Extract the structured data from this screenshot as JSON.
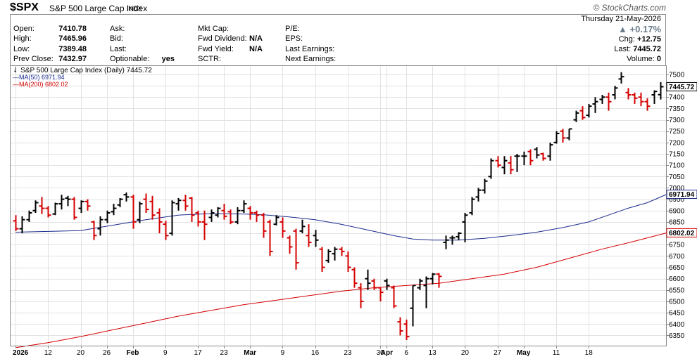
{
  "header": {
    "symbol": "$SPX",
    "name": "S&P 500 Large Cap Index",
    "exchange": "INDX",
    "brand": "© StockCharts.com"
  },
  "quote": {
    "col1": [
      {
        "label": "Open:",
        "value": "7410.78"
      },
      {
        "label": "High:",
        "value": "7465.96"
      },
      {
        "label": "Low:",
        "value": "7389.48"
      },
      {
        "label": "Prev Close:",
        "value": "7432.97"
      }
    ],
    "col2": [
      {
        "label": "Ask:",
        "value": ""
      },
      {
        "label": "Bid:",
        "value": ""
      },
      {
        "label": "Last:",
        "value": ""
      },
      {
        "label": "Optionable:",
        "value": "yes"
      }
    ],
    "col3": [
      {
        "label": "Mkt Cap:",
        "value": ""
      },
      {
        "label": "Fwd Dividend:",
        "value": "N/A"
      },
      {
        "label": "Fwd Yield:",
        "value": "N/A"
      },
      {
        "label": "SCTR:",
        "value": ""
      }
    ],
    "col4": [
      {
        "label": "P/E:",
        "value": ""
      },
      {
        "label": "EPS:",
        "value": ""
      },
      {
        "label": "Last Earnings:",
        "value": ""
      },
      {
        "label": "Next Earnings:",
        "value": ""
      }
    ],
    "date": "Thursday  21-May-2026",
    "pct_change": "+0.17%",
    "chg_label": "Chg:",
    "chg": "+12.75",
    "last_label": "Last:",
    "last": "7445.72",
    "volume_label": "Volume:",
    "volume": "0"
  },
  "colors": {
    "up": "#000000",
    "down": "#d40000",
    "ma50": "#1a2a8c",
    "ma200": "#d40000",
    "grid": "#e2e2e2",
    "pct_up": "#6d7d8c"
  },
  "chart_data": {
    "type": "ohlc",
    "title": "S&P 500 Large Cap Index (Daily) 7445.72",
    "legend": [
      {
        "name": "MA(50) 6971.94",
        "color": "#1a2a8c"
      },
      {
        "name": "MA(200) 6802.02",
        "color": "#d40000"
      }
    ],
    "y_range": [
      6305,
      7540
    ],
    "y_ticks": [
      6350,
      6400,
      6450,
      6500,
      6550,
      6600,
      6650,
      6700,
      6750,
      6800,
      6850,
      6900,
      6950,
      7000,
      7050,
      7100,
      7150,
      7200,
      7250,
      7300,
      7350,
      7400,
      7450,
      7500
    ],
    "x_labels": [
      {
        "label": "2026",
        "i": 0,
        "bold": true
      },
      {
        "label": "12",
        "i": 5,
        "bold": false
      },
      {
        "label": "20",
        "i": 10,
        "bold": false
      },
      {
        "label": "26",
        "i": 14,
        "bold": false
      },
      {
        "label": "Feb",
        "i": 18,
        "bold": true
      },
      {
        "label": "9",
        "i": 23,
        "bold": false
      },
      {
        "label": "17",
        "i": 28,
        "bold": false
      },
      {
        "label": "23",
        "i": 32,
        "bold": false
      },
      {
        "label": "Mar",
        "i": 36,
        "bold": true
      },
      {
        "label": "9",
        "i": 41,
        "bold": false
      },
      {
        "label": "16",
        "i": 46,
        "bold": false
      },
      {
        "label": "23",
        "i": 51,
        "bold": false
      },
      {
        "label": "30",
        "i": 56,
        "bold": false
      },
      {
        "label": "Apr",
        "i": 57,
        "bold": true
      },
      {
        "label": "6",
        "i": 60,
        "bold": false
      },
      {
        "label": "13",
        "i": 64,
        "bold": false
      },
      {
        "label": "20",
        "i": 69,
        "bold": false
      },
      {
        "label": "27",
        "i": 74,
        "bold": false
      },
      {
        "label": "May",
        "i": 78,
        "bold": true
      },
      {
        "label": "11",
        "i": 83,
        "bold": false
      },
      {
        "label": "18",
        "i": 88,
        "bold": false
      }
    ],
    "ohlc": [
      [
        6855,
        6880,
        6810,
        6820
      ],
      [
        6820,
        6875,
        6800,
        6860
      ],
      [
        6860,
        6900,
        6850,
        6890
      ],
      [
        6900,
        6945,
        6890,
        6935
      ],
      [
        6920,
        6960,
        6885,
        6910
      ],
      [
        6910,
        6920,
        6870,
        6880
      ],
      [
        6885,
        6935,
        6880,
        6930
      ],
      [
        6930,
        6970,
        6905,
        6950
      ],
      [
        6955,
        6965,
        6920,
        6950
      ],
      [
        6950,
        6960,
        6860,
        6870
      ],
      [
        6910,
        6945,
        6890,
        6940
      ],
      [
        6940,
        6950,
        6900,
        6920
      ],
      [
        6850,
        6855,
        6770,
        6790
      ],
      [
        6820,
        6875,
        6790,
        6860
      ],
      [
        6860,
        6900,
        6845,
        6890
      ],
      [
        6895,
        6930,
        6880,
        6910
      ],
      [
        6925,
        6955,
        6915,
        6950
      ],
      [
        6970,
        6980,
        6940,
        6960
      ],
      [
        6960,
        6970,
        6820,
        6850
      ],
      [
        6860,
        6940,
        6845,
        6930
      ],
      [
        6950,
        6975,
        6890,
        6905
      ],
      [
        6940,
        6965,
        6860,
        6880
      ],
      [
        6890,
        6910,
        6800,
        6850
      ],
      [
        6840,
        6855,
        6770,
        6790
      ],
      [
        6800,
        6945,
        6790,
        6935
      ],
      [
        6930,
        6955,
        6900,
        6945
      ],
      [
        6945,
        6970,
        6900,
        6920
      ],
      [
        6955,
        6960,
        6850,
        6880
      ],
      [
        6890,
        6900,
        6830,
        6850
      ],
      [
        6850,
        6900,
        6770,
        6840
      ],
      [
        6870,
        6905,
        6850,
        6890
      ],
      [
        6880,
        6915,
        6870,
        6910
      ],
      [
        6900,
        6930,
        6860,
        6875
      ],
      [
        6895,
        6905,
        6840,
        6850
      ],
      [
        6850,
        6915,
        6840,
        6900
      ],
      [
        6900,
        6945,
        6890,
        6930
      ],
      [
        6910,
        6920,
        6860,
        6890
      ],
      [
        6890,
        6900,
        6850,
        6880
      ],
      [
        6880,
        6890,
        6780,
        6810
      ],
      [
        6850,
        6860,
        6700,
        6720
      ],
      [
        6840,
        6880,
        6835,
        6870
      ],
      [
        6850,
        6870,
        6780,
        6810
      ],
      [
        6780,
        6790,
        6710,
        6740
      ],
      [
        6810,
        6820,
        6640,
        6670
      ],
      [
        6810,
        6860,
        6800,
        6830
      ],
      [
        6790,
        6840,
        6740,
        6760
      ],
      [
        6790,
        6815,
        6740,
        6770
      ],
      [
        6730,
        6740,
        6630,
        6650
      ],
      [
        6680,
        6730,
        6670,
        6720
      ],
      [
        6710,
        6740,
        6680,
        6730
      ],
      [
        6730,
        6740,
        6700,
        6720
      ],
      [
        6700,
        6720,
        6630,
        6650
      ],
      [
        6640,
        6650,
        6560,
        6580
      ],
      [
        6560,
        6580,
        6470,
        6500
      ],
      [
        6600,
        6640,
        6550,
        6580
      ],
      [
        6590,
        6600,
        6550,
        6560
      ],
      [
        6560,
        6560,
        6500,
        6540
      ],
      [
        6590,
        6600,
        6550,
        6570
      ],
      [
        6560,
        6570,
        6470,
        6480
      ],
      [
        6410,
        6430,
        6350,
        6370
      ],
      [
        6400,
        6420,
        6330,
        6345
      ],
      [
        6470,
        6570,
        6390,
        6570
      ],
      [
        6560,
        6600,
        6550,
        6590
      ],
      [
        6570,
        6610,
        6470,
        6600
      ],
      [
        6600,
        6625,
        6575,
        6620
      ],
      [
        6620,
        6625,
        6560,
        6610
      ],
      [
        6760,
        6790,
        6730,
        6770
      ],
      [
        6780,
        6790,
        6750,
        6780
      ],
      [
        6785,
        6805,
        6770,
        6800
      ],
      [
        6850,
        6890,
        6760,
        6880
      ],
      [
        6890,
        6960,
        6880,
        6950
      ],
      [
        6960,
        7000,
        6940,
        6990
      ],
      [
        6990,
        7040,
        6975,
        7030
      ],
      [
        7050,
        7130,
        7040,
        7120
      ],
      [
        7120,
        7140,
        7090,
        7100
      ],
      [
        7090,
        7140,
        7060,
        7120
      ],
      [
        7110,
        7140,
        7060,
        7080
      ],
      [
        7140,
        7150,
        7070,
        7140
      ],
      [
        7140,
        7160,
        7100,
        7140
      ],
      [
        7160,
        7170,
        7100,
        7120
      ],
      [
        7170,
        7180,
        7130,
        7145
      ],
      [
        7150,
        7155,
        7120,
        7130
      ],
      [
        7140,
        7200,
        7120,
        7190
      ],
      [
        7200,
        7250,
        7195,
        7240
      ],
      [
        7250,
        7260,
        7200,
        7220
      ],
      [
        7220,
        7260,
        7210,
        7260
      ],
      [
        7300,
        7340,
        7290,
        7330
      ],
      [
        7340,
        7360,
        7300,
        7310
      ],
      [
        7320,
        7370,
        7310,
        7360
      ],
      [
        7370,
        7400,
        7330,
        7380
      ],
      [
        7390,
        7410,
        7370,
        7400
      ],
      [
        7400,
        7420,
        7340,
        7380
      ],
      [
        7410,
        7450,
        7390,
        7440
      ],
      [
        7480,
        7510,
        7460,
        7490
      ],
      [
        7420,
        7440,
        7390,
        7410
      ],
      [
        7410,
        7420,
        7370,
        7395
      ],
      [
        7400,
        7420,
        7360,
        7380
      ],
      [
        7380,
        7395,
        7340,
        7360
      ],
      [
        7410,
        7430,
        7370,
        7425
      ],
      [
        7410.78,
        7465.96,
        7389.48,
        7445.72
      ]
    ],
    "ma50": [
      [
        0,
        6805
      ],
      [
        10,
        6812
      ],
      [
        20,
        6860
      ],
      [
        25,
        6880
      ],
      [
        30,
        6887
      ],
      [
        35,
        6885
      ],
      [
        38,
        6882
      ],
      [
        42,
        6872
      ],
      [
        46,
        6860
      ],
      [
        50,
        6840
      ],
      [
        54,
        6815
      ],
      [
        58,
        6790
      ],
      [
        61,
        6775
      ],
      [
        64,
        6770
      ],
      [
        68,
        6770
      ],
      [
        72,
        6778
      ],
      [
        76,
        6790
      ],
      [
        80,
        6805
      ],
      [
        84,
        6825
      ],
      [
        88,
        6850
      ],
      [
        91,
        6880
      ],
      [
        94,
        6910
      ],
      [
        97,
        6935
      ],
      [
        100,
        6971.94
      ]
    ],
    "ma200": [
      [
        0,
        6296
      ],
      [
        5,
        6318
      ],
      [
        10,
        6345
      ],
      [
        15,
        6375
      ],
      [
        20,
        6405
      ],
      [
        25,
        6435
      ],
      [
        30,
        6460
      ],
      [
        35,
        6485
      ],
      [
        40,
        6505
      ],
      [
        45,
        6525
      ],
      [
        50,
        6545
      ],
      [
        55,
        6560
      ],
      [
        60,
        6570
      ],
      [
        65,
        6580
      ],
      [
        70,
        6600
      ],
      [
        75,
        6620
      ],
      [
        80,
        6650
      ],
      [
        85,
        6690
      ],
      [
        90,
        6730
      ],
      [
        95,
        6765
      ],
      [
        100,
        6802.02
      ]
    ],
    "grid": true
  }
}
